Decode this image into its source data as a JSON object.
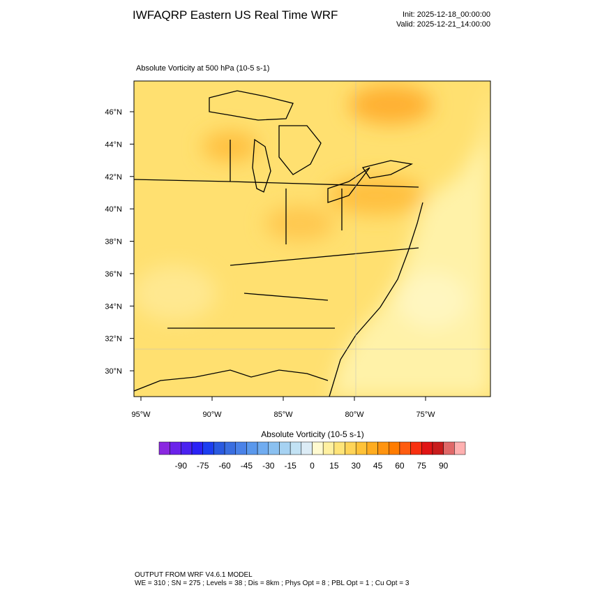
{
  "header": {
    "title": "IWFAQRP Eastern US Real Time WRF",
    "init": "Init: 2025-12-18_00:00:00",
    "valid": "Valid: 2025-12-21_14:00:00"
  },
  "map": {
    "field_title": "Absolute Vorticity at 500 hPa   (10-5 s-1)",
    "lat_ticks": [
      {
        "value": 46,
        "label": "46°N"
      },
      {
        "value": 44,
        "label": "44°N"
      },
      {
        "value": 42,
        "label": "42°N"
      },
      {
        "value": 40,
        "label": "40°N"
      },
      {
        "value": 38,
        "label": "38°N"
      },
      {
        "value": 36,
        "label": "36°N"
      },
      {
        "value": 34,
        "label": "34°N"
      },
      {
        "value": 32,
        "label": "32°N"
      },
      {
        "value": 30,
        "label": "30°N"
      }
    ],
    "lon_ticks": [
      {
        "value": -95,
        "label": "95°W"
      },
      {
        "value": -90,
        "label": "90°W"
      },
      {
        "value": -85,
        "label": "85°W"
      },
      {
        "value": -80,
        "label": "80°W"
      },
      {
        "value": -75,
        "label": "75°W"
      }
    ]
  },
  "colorbar": {
    "title": "Absolute Vorticity  (10-5 s-1)",
    "range": [
      -105,
      105
    ],
    "colors": [
      "#8a28e0",
      "#6a22ea",
      "#4a22f0",
      "#2a22f5",
      "#1c3ef0",
      "#2a5ae0",
      "#3a6ee0",
      "#4a82e8",
      "#5a98ec",
      "#70acf0",
      "#8ac0f0",
      "#a6d2f2",
      "#c2e2f4",
      "#dcecf6",
      "#fffad0",
      "#fff0a0",
      "#ffe478",
      "#ffd458",
      "#ffc238",
      "#ffac20",
      "#ff9410",
      "#ff7c00",
      "#ff5c10",
      "#f83010",
      "#e01414",
      "#c81c1c",
      "#e06868",
      "#ffb0b0"
    ],
    "ticks": [
      -90,
      -75,
      -60,
      -45,
      -30,
      -15,
      0,
      15,
      30,
      45,
      60,
      75,
      90
    ]
  },
  "footer": {
    "line1": "OUTPUT FROM WRF V4.6.1 MODEL",
    "line2": "WE = 310 ; SN = 275 ; Levels = 38 ; Dis = 8km ; Phys Opt = 8 ; PBL Opt = 1 ; Cu Opt = 3"
  }
}
